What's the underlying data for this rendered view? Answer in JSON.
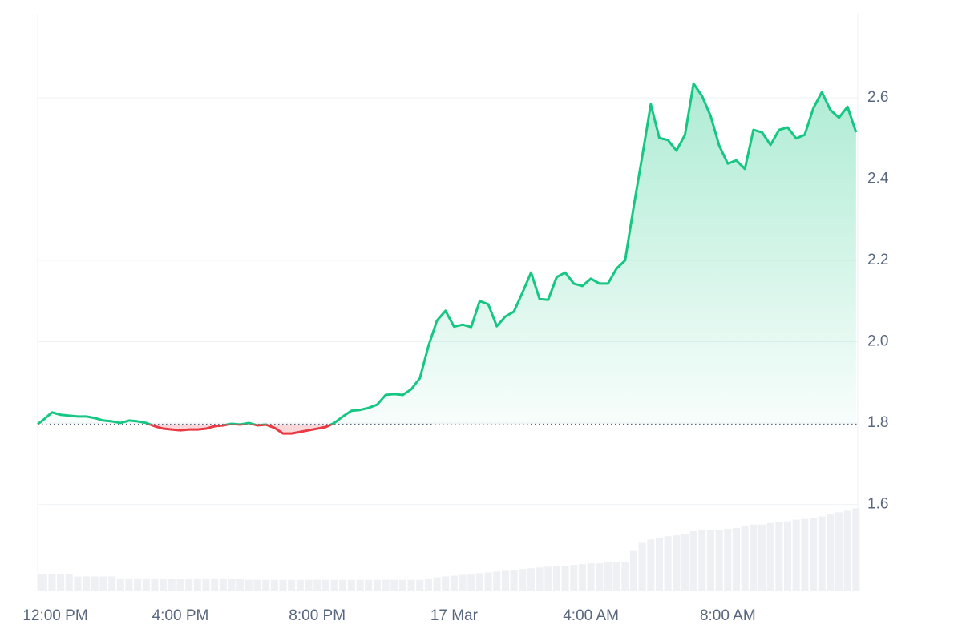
{
  "chart_data": {
    "type": "line",
    "x": [
      11.83,
      12,
      12.25,
      12.5,
      12.75,
      13,
      13.25,
      13.5,
      13.75,
      14,
      14.25,
      14.5,
      14.75,
      15,
      15.25,
      15.5,
      15.75,
      16,
      16.25,
      16.5,
      16.75,
      17,
      17.25,
      17.5,
      17.75,
      18,
      18.25,
      18.5,
      18.75,
      19,
      19.25,
      19.5,
      19.75,
      20,
      20.25,
      20.5,
      20.75,
      21,
      21.25,
      21.5,
      21.75,
      22,
      22.25,
      22.5,
      22.75,
      23,
      23.25,
      23.5,
      23.75,
      24,
      24.25,
      24.5,
      24.75,
      25,
      25.25,
      25.5,
      25.75,
      26,
      26.25,
      26.5,
      26.75,
      27,
      27.25,
      27.5,
      27.75,
      28,
      28.25,
      28.5,
      28.75,
      29,
      29.25,
      29.5,
      29.75,
      30,
      30.25,
      30.5,
      30.75,
      31,
      31.25,
      31.5,
      31.75,
      32,
      32.25,
      32.5,
      32.75,
      33,
      33.25,
      33.5,
      33.75,
      34,
      34.25,
      34.5,
      34.75,
      35,
      35.25,
      35.5,
      35.75
    ],
    "values": [
      1.797,
      1.808,
      1.826,
      1.82,
      1.818,
      1.816,
      1.816,
      1.812,
      1.806,
      1.804,
      1.8,
      1.806,
      1.804,
      1.8,
      1.792,
      1.786,
      1.784,
      1.782,
      1.784,
      1.784,
      1.786,
      1.792,
      1.794,
      1.798,
      1.796,
      1.8,
      1.794,
      1.796,
      1.788,
      1.774,
      1.774,
      1.778,
      1.782,
      1.786,
      1.79,
      1.8,
      1.816,
      1.83,
      1.832,
      1.837,
      1.845,
      1.869,
      1.871,
      1.869,
      1.883,
      1.91,
      1.989,
      2.052,
      2.076,
      2.037,
      2.042,
      2.036,
      2.1,
      2.092,
      2.038,
      2.062,
      2.074,
      2.121,
      2.17,
      2.105,
      2.103,
      2.159,
      2.17,
      2.143,
      2.137,
      2.155,
      2.143,
      2.143,
      2.18,
      2.2,
      2.332,
      2.456,
      2.584,
      2.501,
      2.496,
      2.47,
      2.509,
      2.635,
      2.604,
      2.555,
      2.482,
      2.438,
      2.446,
      2.425,
      2.521,
      2.515,
      2.484,
      2.521,
      2.527,
      2.5,
      2.509,
      2.574,
      2.614,
      2.57,
      2.551,
      2.578,
      2.515
    ],
    "color_up": "#16c784",
    "color_down": "#ea3943",
    "xlim": [
      11.83,
      35.8
    ],
    "xticks": [
      {
        "value": 12,
        "label": "12:00 PM"
      },
      {
        "value": 16,
        "label": "4:00 PM"
      },
      {
        "value": 20,
        "label": "8:00 PM"
      },
      {
        "value": 24,
        "label": "17 Mar"
      },
      {
        "value": 28,
        "label": "4:00 AM"
      },
      {
        "value": 32,
        "label": "8:00 AM"
      }
    ],
    "ylim": [
      1.388,
      2.805
    ],
    "yticks": [
      1.6,
      1.8,
      {
        "value": 2,
        "label": "2.0"
      },
      2.2,
      2.4,
      2.6
    ],
    "grid": true,
    "volume": {
      "color": "#eef0f4",
      "ylim": [
        0,
        700
      ],
      "values": [
        20,
        20,
        20,
        20,
        20,
        17,
        17,
        17,
        17,
        17,
        14,
        14,
        14,
        14,
        14,
        14,
        14,
        14,
        14,
        14,
        14,
        14,
        14,
        14,
        14,
        13,
        13,
        13,
        13,
        13,
        13,
        13,
        13,
        13,
        13,
        13,
        13,
        13,
        13,
        13,
        13,
        13,
        13,
        13,
        13,
        13,
        14,
        16,
        17,
        18,
        19,
        20,
        21,
        22,
        23,
        24,
        25,
        26,
        27,
        28,
        29,
        30,
        30,
        31,
        32,
        33,
        33,
        34,
        34,
        35,
        48,
        58,
        62,
        64,
        66,
        67,
        69,
        72,
        73,
        74,
        74,
        75,
        76,
        78,
        80,
        80,
        82,
        83,
        84,
        86,
        87,
        88,
        90,
        93,
        95,
        97,
        100
      ]
    }
  }
}
